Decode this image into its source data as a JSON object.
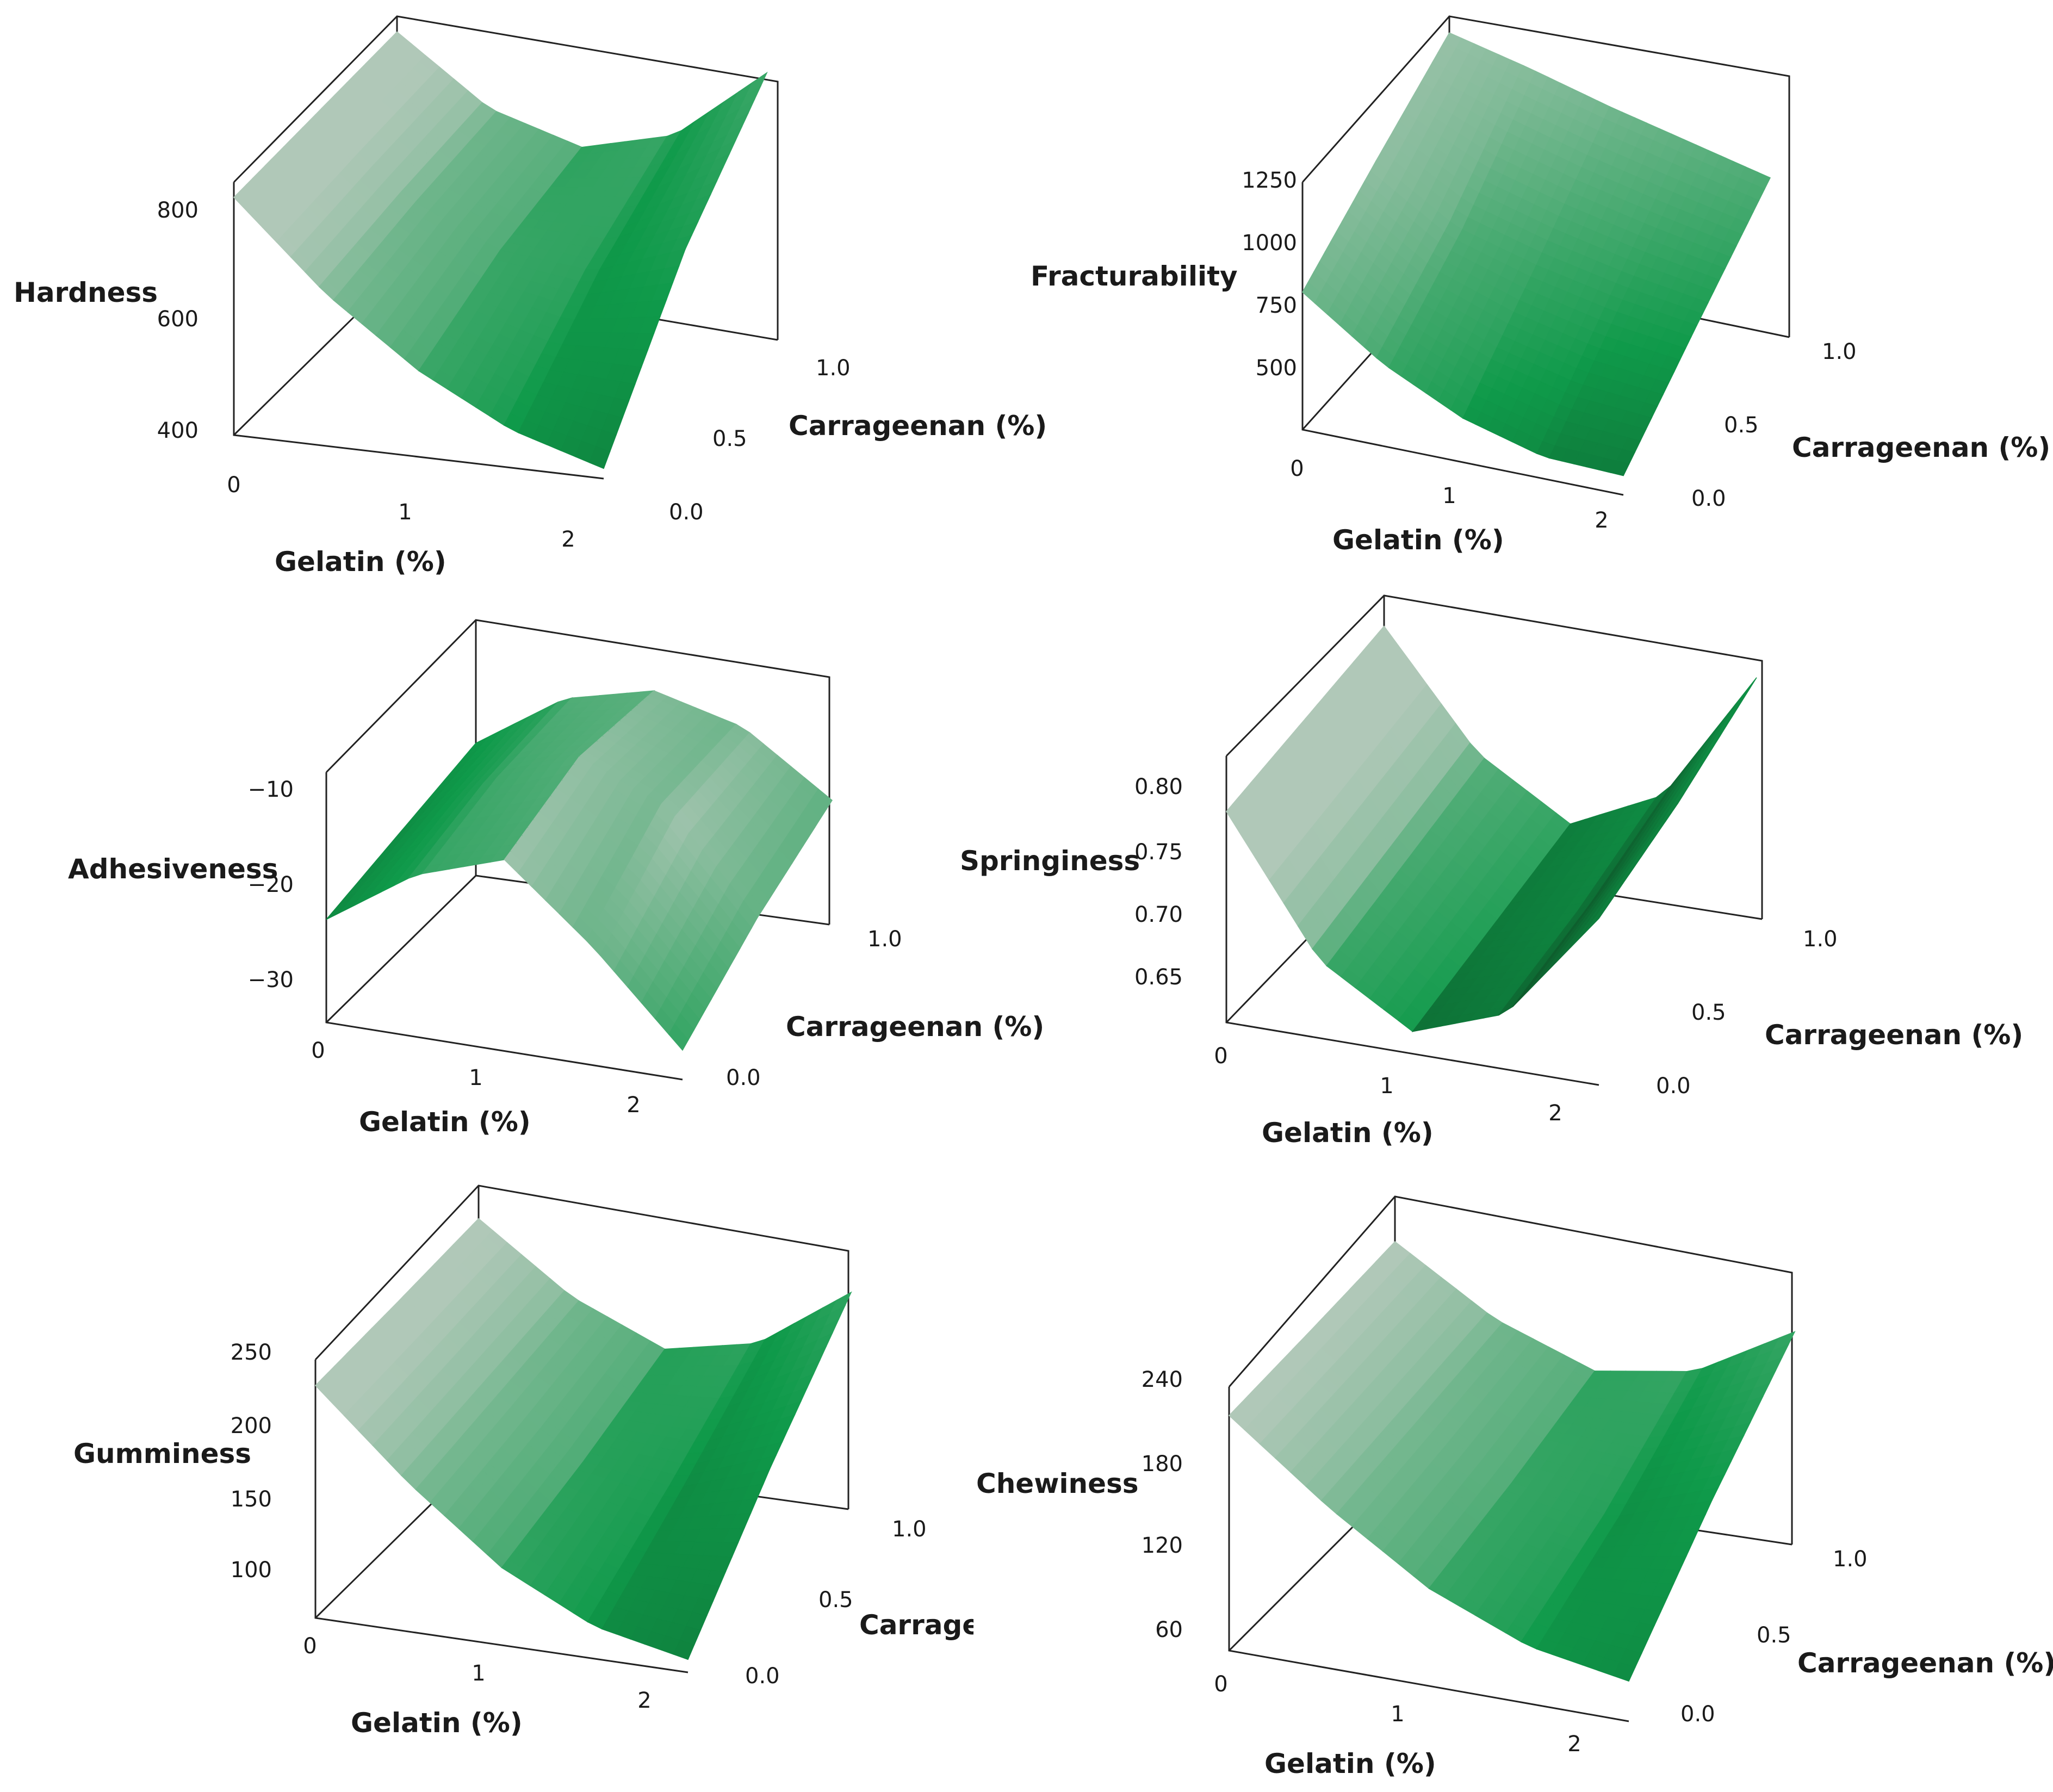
{
  "colors": {
    "light": "#b0c8b8",
    "mid": "#0f9a4a",
    "dark": "#0d3a1c"
  },
  "chart_data": [
    {
      "type": "surface3d",
      "zlabel": "Hardness",
      "xlabel": "Gelatin (%)",
      "ylabel": "Carrageenan (%)",
      "xticks": [
        "0",
        "1",
        "2"
      ],
      "yticks": [
        "0.0",
        "0.5",
        "1.0"
      ],
      "zticks": [
        "400",
        "600",
        "800"
      ],
      "xlim": [
        0,
        2
      ],
      "ylim": [
        0,
        1
      ],
      "zlim": [
        360,
        860
      ],
      "z_grid": [
        [
          840,
          710,
          655,
          700,
          845
        ],
        [
          835,
          690,
          610,
          590,
          655
        ],
        [
          830,
          660,
          530,
          435,
          380
        ]
      ]
    },
    {
      "type": "surface3d",
      "zlabel": "Fracturability",
      "xlabel": "Gelatin (%)",
      "ylabel": "Carrageenan (%)",
      "xticks": [
        "0",
        "1",
        "2"
      ],
      "yticks": [
        "0.0",
        "0.5",
        "1.0"
      ],
      "zticks": [
        "500",
        "750",
        "1000",
        "1250"
      ],
      "xlim": [
        0,
        2
      ],
      "ylim": [
        0,
        1
      ],
      "zlim": [
        400,
        1300
      ],
      "z_grid": [
        [
          1250,
          1180,
          1100,
          1030,
          960
        ],
        [
          1080,
          900,
          820,
          760,
          720
        ],
        [
          900,
          700,
          560,
          480,
          470
        ]
      ]
    },
    {
      "type": "surface3d",
      "zlabel": "Adhesiveness",
      "xlabel": "Gelatin (%)",
      "ylabel": "Carrageenan (%)",
      "xticks": [
        "0",
        "1",
        "2"
      ],
      "yticks": [
        "0.0",
        "1.0"
      ],
      "zticks": [
        "−10",
        "−20",
        "−30"
      ],
      "xlim": [
        0,
        2
      ],
      "ylim": [
        0,
        1
      ],
      "zlim": [
        -36,
        -2
      ],
      "z_grid": [
        [
          -18,
          -10,
          -7,
          -10,
          -18
        ],
        [
          -20,
          -11,
          -6,
          -11,
          -24
        ],
        [
          -22,
          -14,
          -10,
          -20,
          -32
        ]
      ]
    },
    {
      "type": "surface3d",
      "zlabel": "Springiness",
      "xlabel": "Gelatin (%)",
      "ylabel": "Carrageenan (%)",
      "xticks": [
        "0",
        "1",
        "2"
      ],
      "yticks": [
        "0.0",
        "0.5",
        "1.0"
      ],
      "zticks": [
        "0.65",
        "0.70",
        "0.75",
        "0.80"
      ],
      "xlim": [
        0,
        2
      ],
      "ylim": [
        0,
        1
      ],
      "zlim": [
        0.61,
        0.85
      ],
      "z_grid": [
        [
          0.82,
          0.72,
          0.67,
          0.71,
          0.83
        ],
        [
          0.81,
          0.7,
          0.65,
          0.68,
          0.79
        ],
        [
          0.8,
          0.68,
          0.63,
          0.66,
          0.76
        ]
      ]
    },
    {
      "type": "surface3d",
      "zlabel": "Gumminess",
      "xlabel": "Gelatin (%)",
      "ylabel": "Carrageenan (%)",
      "xticks": [
        "0",
        "1",
        "2"
      ],
      "yticks": [
        "0.0",
        "0.5",
        "1.0"
      ],
      "zticks": [
        "100",
        "150",
        "200",
        "250"
      ],
      "xlim": [
        0,
        2
      ],
      "ylim": [
        0,
        1
      ],
      "zlim": [
        70,
        270
      ],
      "z_grid": [
        [
          255,
          205,
          175,
          190,
          240
        ],
        [
          252,
          195,
          150,
          140,
          165
        ],
        [
          250,
          185,
          130,
          95,
          80
        ]
      ]
    },
    {
      "type": "surface3d",
      "zlabel": "Chewiness",
      "xlabel": "Gelatin (%)",
      "ylabel": "Carrageenan (%)",
      "xticks": [
        "0",
        "1",
        "2"
      ],
      "yticks": [
        "0.0",
        "0.5",
        "1.0"
      ],
      "zticks": [
        "60",
        "120",
        "180",
        "240"
      ],
      "xlim": [
        0,
        2
      ],
      "ylim": [
        0,
        1
      ],
      "zlim": [
        30,
        260
      ],
      "z_grid": [
        [
          242,
          190,
          160,
          175,
          225
        ],
        [
          238,
          180,
          135,
          120,
          150
        ],
        [
          235,
          170,
          115,
          80,
          65
        ]
      ]
    }
  ]
}
